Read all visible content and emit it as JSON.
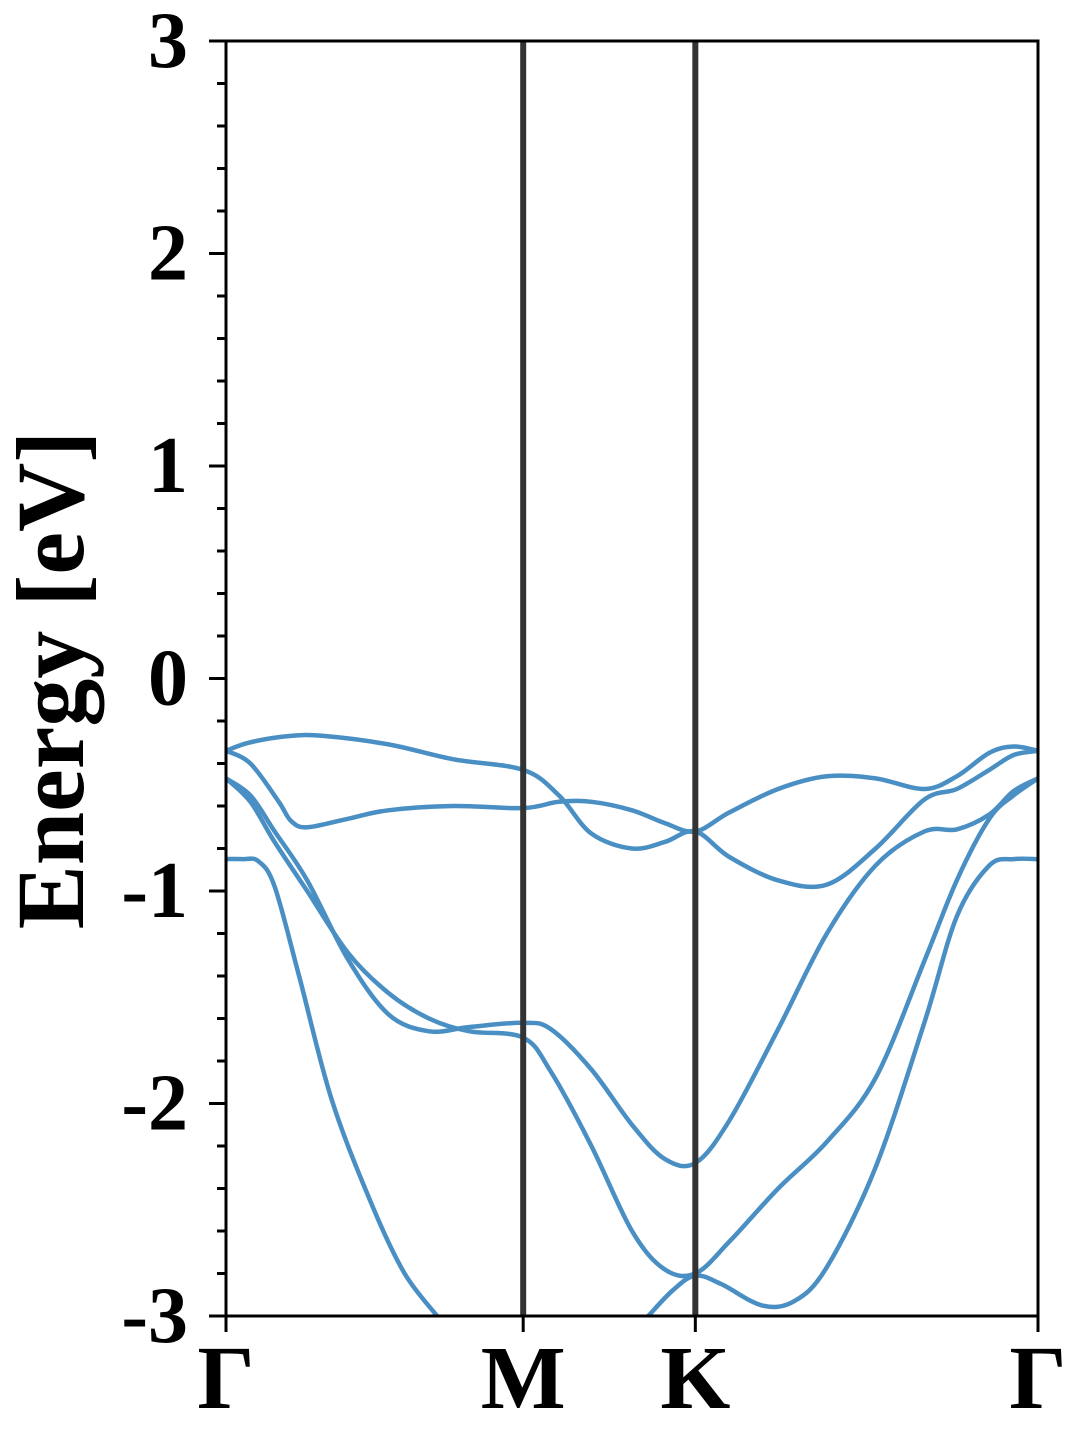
{
  "chart_data": {
    "type": "line",
    "title": "",
    "xlabel": "",
    "ylabel": "Energy [eV]",
    "ylim": [
      -3,
      3
    ],
    "y_ticks": [
      -3,
      -2,
      -1,
      0,
      1,
      2,
      3
    ],
    "y_tick_labels": [
      "-3",
      "-2",
      "-1",
      "0",
      "1",
      "2",
      "3"
    ],
    "y_minor_step": 0.2,
    "x_range": [
      0,
      1
    ],
    "k_points": [
      {
        "label": "Γ",
        "x": 0.0
      },
      {
        "label": "M",
        "x": 0.366
      },
      {
        "label": "K",
        "x": 0.578
      },
      {
        "label": "Γ",
        "x": 1.0
      }
    ],
    "line_color": "#4a8fc4",
    "vline_color": "#333333",
    "grid": false,
    "series": [
      {
        "x": [
          0.0,
          0.03,
          0.08,
          0.12,
          0.2,
          0.28,
          0.366,
          0.41,
          0.45,
          0.5,
          0.54,
          0.578,
          0.62,
          0.68,
          0.74,
          0.8,
          0.86,
          0.9,
          0.94,
          0.97,
          1.0
        ],
        "y": [
          -0.34,
          -0.3,
          -0.27,
          -0.27,
          -0.31,
          -0.38,
          -0.43,
          -0.55,
          -0.73,
          -0.8,
          -0.77,
          -0.72,
          -0.84,
          -0.95,
          -0.97,
          -0.8,
          -0.57,
          -0.52,
          -0.43,
          -0.36,
          -0.34
        ]
      },
      {
        "x": [
          0.0,
          0.03,
          0.065,
          0.08,
          0.1,
          0.15,
          0.2,
          0.28,
          0.366,
          0.41,
          0.45,
          0.5,
          0.54,
          0.578,
          0.62,
          0.68,
          0.74,
          0.8,
          0.86,
          0.9,
          0.94,
          0.97,
          1.0
        ],
        "y": [
          -0.34,
          -0.4,
          -0.58,
          -0.67,
          -0.7,
          -0.66,
          -0.62,
          -0.6,
          -0.61,
          -0.58,
          -0.58,
          -0.62,
          -0.68,
          -0.72,
          -0.63,
          -0.52,
          -0.46,
          -0.47,
          -0.52,
          -0.46,
          -0.35,
          -0.32,
          -0.34
        ]
      },
      {
        "x": [
          0.0,
          0.03,
          0.06,
          0.1,
          0.15,
          0.2,
          0.25,
          0.3,
          0.366,
          0.4,
          0.45,
          0.5,
          0.54,
          0.578,
          0.62,
          0.68,
          0.74,
          0.8,
          0.86,
          0.9,
          0.94,
          0.97,
          1.0
        ],
        "y": [
          -0.47,
          -0.55,
          -0.72,
          -0.95,
          -1.32,
          -1.58,
          -1.66,
          -1.64,
          -1.62,
          -1.65,
          -1.84,
          -2.1,
          -2.26,
          -2.28,
          -2.08,
          -1.65,
          -1.2,
          -0.88,
          -0.72,
          -0.71,
          -0.64,
          -0.53,
          -0.47
        ]
      },
      {
        "x": [
          0.0,
          0.03,
          0.06,
          0.1,
          0.15,
          0.2,
          0.25,
          0.3,
          0.366,
          0.4,
          0.45,
          0.5,
          0.54,
          0.578,
          0.62,
          0.68,
          0.74,
          0.8,
          0.86,
          0.9,
          0.94,
          0.97,
          1.0
        ],
        "y": [
          -0.47,
          -0.58,
          -0.77,
          -1.0,
          -1.29,
          -1.48,
          -1.6,
          -1.66,
          -1.69,
          -1.85,
          -2.2,
          -2.6,
          -2.78,
          -2.8,
          -2.65,
          -2.4,
          -2.18,
          -1.88,
          -1.33,
          -0.95,
          -0.66,
          -0.55,
          -0.47
        ]
      },
      {
        "x": [
          0.0,
          0.02,
          0.04,
          0.06,
          0.09,
          0.13,
          0.18,
          0.22,
          0.26
        ],
        "y": [
          -0.85,
          -0.85,
          -0.86,
          -0.98,
          -1.4,
          -1.98,
          -2.48,
          -2.8,
          -3.0
        ]
      },
      {
        "x": [
          0.52,
          0.55,
          0.578,
          0.61,
          0.66,
          0.7,
          0.74,
          0.8,
          0.86,
          0.9,
          0.94,
          0.97,
          1.0
        ],
        "y": [
          -3.0,
          -2.88,
          -2.81,
          -2.85,
          -2.95,
          -2.93,
          -2.77,
          -2.3,
          -1.62,
          -1.12,
          -0.88,
          -0.85,
          -0.85
        ]
      }
    ]
  }
}
